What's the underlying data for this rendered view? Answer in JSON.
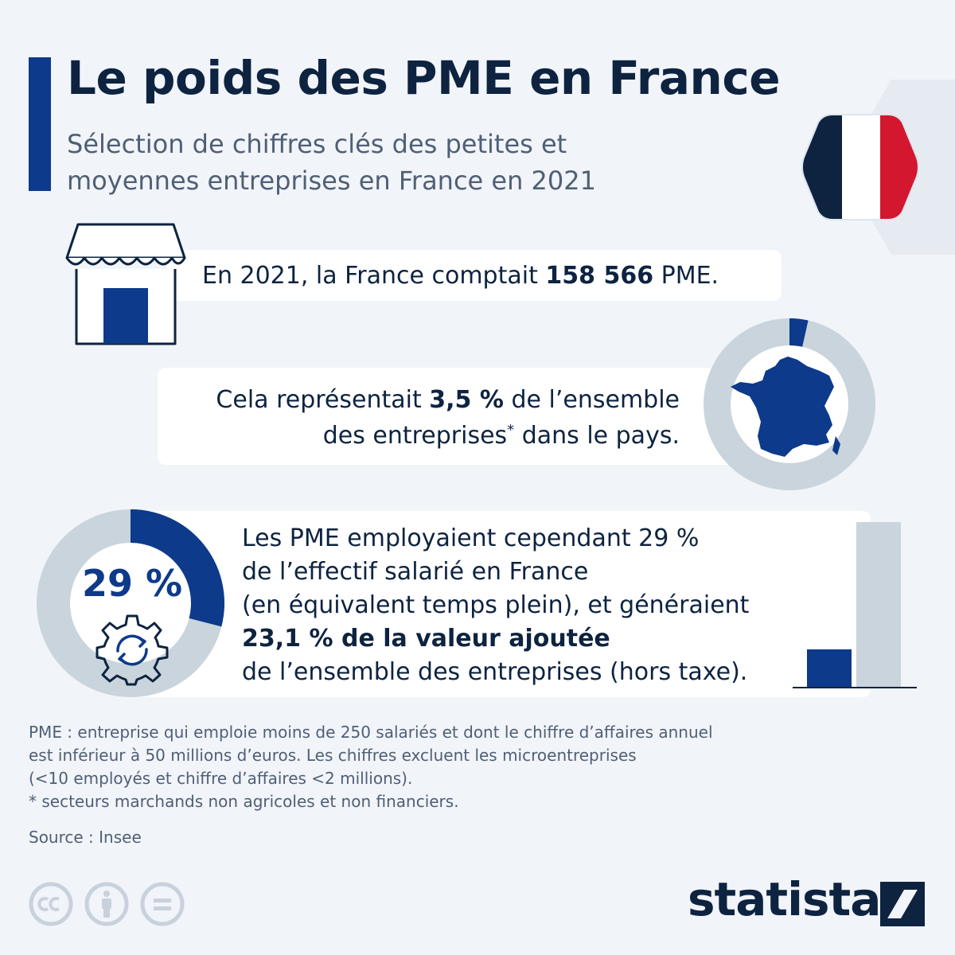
{
  "header": {
    "title": "Le poids des PME en France",
    "subtitle_line1": "Sélection de chiffres clés des petites et",
    "subtitle_line2": "moyennes entreprises en France en 2021"
  },
  "stat_pme_count": {
    "prefix": "En 2021, la France comptait ",
    "value": "158 566",
    "suffix": " PME."
  },
  "stat_share": {
    "line1_prefix": "Cela représentait ",
    "value": "3,5 %",
    "line1_suffix": " de l’ensemble",
    "line2_prefix": "des entreprises",
    "footnote_mark": "*",
    "line2_suffix": " dans le pays.",
    "share_percent": 3.5
  },
  "stat_employment": {
    "ring_label": "29 %",
    "ring_percent": 29,
    "line1": "Les PME employaient cependant 29 %",
    "line2": "de l’effectif salarié en France",
    "line3": "(en équivalent temps plein), et généraient",
    "line4_bold": "23,1 % de la valeur ajoutée",
    "line5": "de l’ensemble des entreprises (hors taxe).",
    "value_added_percent": 23.1
  },
  "footnote": {
    "line1": "PME : entreprise qui emploie moins de 250 salariés et dont le chiffre d’affaires annuel",
    "line2": "est inférieur à 50 millions d’euros. Les chiffres excluent les microentreprises",
    "line3": "(<10 employés et chiffre d’affaires <2 millions).",
    "line4": "* secteurs marchands non agricoles et non financiers."
  },
  "source": "Source : Insee",
  "brand": "statista",
  "license_icons": [
    "cc-icon",
    "attribution-icon",
    "no-derivatives-icon"
  ],
  "colors": {
    "navy": "#0d2340",
    "accent_blue": "#0d3a8a",
    "ring_grey": "#c9d4dc",
    "background": "#f1f4f9",
    "flag_red": "#d3172e"
  }
}
